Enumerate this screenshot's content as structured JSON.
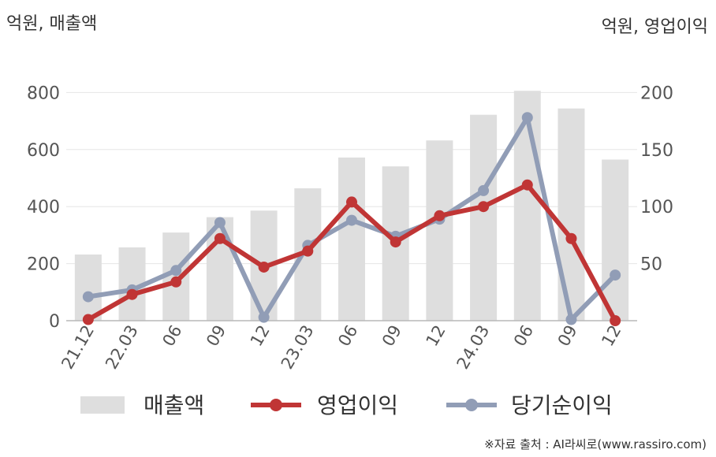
{
  "chart_data": {
    "type": "bar+line",
    "left_unit": "억원, 매출액",
    "right_unit": "억원, 영업이익",
    "categories": [
      "21.12",
      "22.03",
      "06",
      "09",
      "12",
      "23.03",
      "06",
      "09",
      "12",
      "24.03",
      "06",
      "09",
      "12"
    ],
    "y_left": {
      "ticks": [
        0,
        200,
        400,
        600,
        800
      ],
      "range": [
        0,
        1000
      ]
    },
    "y_right": {
      "ticks": [
        50,
        100,
        150,
        200
      ],
      "range": [
        0,
        250
      ]
    },
    "series": [
      {
        "name": "매출액",
        "type": "bar",
        "axis": "left",
        "color": "#dedede",
        "values": [
          232,
          257,
          309,
          363,
          386,
          464,
          572,
          541,
          632,
          722,
          806,
          744,
          565
        ]
      },
      {
        "name": "영업이익",
        "type": "line",
        "axis": "right",
        "color": "#c03535",
        "values": [
          1,
          23,
          34,
          72,
          47,
          61,
          104,
          69,
          92,
          100,
          119,
          72,
          0
        ]
      },
      {
        "name": "당기순이익",
        "type": "line",
        "axis": "right",
        "color": "#919db6",
        "values": [
          21,
          27,
          44,
          86,
          3,
          66,
          88,
          74,
          89,
          114,
          178,
          1,
          40
        ]
      }
    ],
    "legend": [
      "매출액",
      "영업이익",
      "당기순이익"
    ],
    "legend_position": "bottom",
    "grid": true
  },
  "source": "※자료 출처 : AI라씨로(www.rassiro.com)"
}
